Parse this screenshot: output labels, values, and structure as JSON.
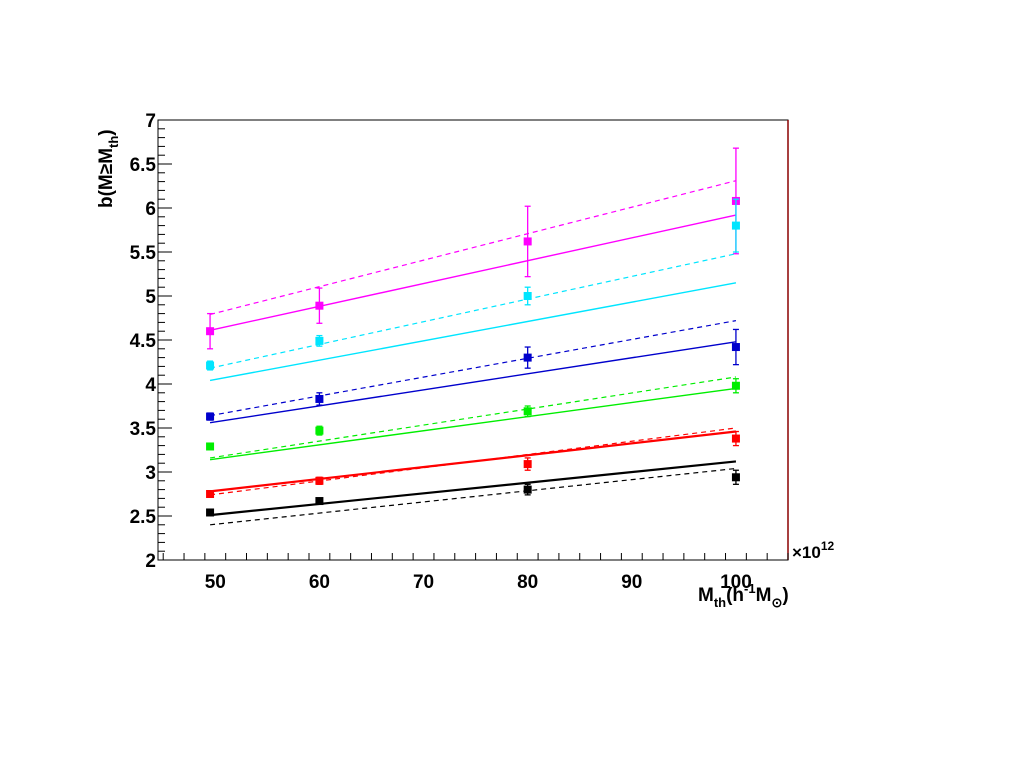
{
  "chart_data": {
    "type": "scatter",
    "title": "",
    "xlabel": {
      "main": "M",
      "sub": "th",
      "open": "(h",
      "sup": "-1",
      "m": "M",
      "odot": "⊙",
      "close": ")"
    },
    "ylabel": {
      "main": "b(M≥M",
      "sub": "th",
      "close": ")"
    },
    "x_multiplier": "×10",
    "x_multiplier_exp": "12",
    "xlim": [
      44.5,
      105
    ],
    "ylim": [
      2,
      7
    ],
    "x_ticks": [
      50,
      60,
      70,
      80,
      90,
      100
    ],
    "y_ticks": [
      2,
      2.5,
      3,
      3.5,
      4,
      4.5,
      5,
      5.5,
      6,
      6.5,
      7
    ],
    "x_tick_labels": [
      "50",
      "60",
      "70",
      "80",
      "90",
      "100"
    ],
    "y_tick_labels": [
      "2",
      "2.5",
      "3",
      "3.5",
      "4",
      "4.5",
      "5",
      "5.5",
      "6",
      "6.5",
      "7"
    ],
    "grid": false,
    "series": [
      {
        "color": "#ff00ff",
        "points": [
          {
            "x": 49.5,
            "y": 4.6,
            "err": 0.2
          },
          {
            "x": 60,
            "y": 4.89,
            "err": 0.2
          },
          {
            "x": 80,
            "y": 5.62,
            "err": 0.4
          },
          {
            "x": 100,
            "y": 6.08,
            "err": 0.6
          }
        ],
        "solid": [
          [
            49.5,
            4.61
          ],
          [
            100,
            5.92
          ]
        ],
        "dashed": [
          [
            49.5,
            4.79
          ],
          [
            100,
            6.31
          ]
        ]
      },
      {
        "color": "#00e5ff",
        "points": [
          {
            "x": 49.5,
            "y": 4.21,
            "err": 0.05
          },
          {
            "x": 60,
            "y": 4.49,
            "err": 0.06
          },
          {
            "x": 80,
            "y": 5.0,
            "err": 0.1
          },
          {
            "x": 100,
            "y": 5.8,
            "err": 0.3
          }
        ],
        "solid": [
          [
            49.5,
            4.04
          ],
          [
            100,
            5.15
          ]
        ],
        "dashed": [
          [
            49.5,
            4.18
          ],
          [
            100,
            5.48
          ]
        ]
      },
      {
        "color": "#0000cc",
        "points": [
          {
            "x": 49.5,
            "y": 3.63,
            "err": 0.04
          },
          {
            "x": 60,
            "y": 3.83,
            "err": 0.07
          },
          {
            "x": 80,
            "y": 4.3,
            "err": 0.12
          },
          {
            "x": 100,
            "y": 4.42,
            "err": 0.2
          }
        ],
        "solid": [
          [
            49.5,
            3.56
          ],
          [
            100,
            4.48
          ]
        ],
        "dashed": [
          [
            49.5,
            3.64
          ],
          [
            100,
            4.72
          ]
        ]
      },
      {
        "color": "#00ee00",
        "points": [
          {
            "x": 49.5,
            "y": 3.29,
            "err": 0.03
          },
          {
            "x": 60,
            "y": 3.47,
            "err": 0.05
          },
          {
            "x": 80,
            "y": 3.69,
            "err": 0.06
          },
          {
            "x": 100,
            "y": 3.98,
            "err": 0.08
          }
        ],
        "solid": [
          [
            49.5,
            3.14
          ],
          [
            100,
            3.95
          ]
        ],
        "dashed": [
          [
            49.5,
            3.16
          ],
          [
            100,
            4.08
          ]
        ]
      },
      {
        "color": "#ff0000",
        "points": [
          {
            "x": 49.5,
            "y": 2.75,
            "err": 0.02
          },
          {
            "x": 60,
            "y": 2.9,
            "err": 0.04
          },
          {
            "x": 80,
            "y": 3.09,
            "err": 0.07
          },
          {
            "x": 100,
            "y": 3.38,
            "err": 0.08
          }
        ],
        "solid": [
          [
            49.5,
            2.78
          ],
          [
            100,
            3.46
          ]
        ],
        "dashed": [
          [
            49.5,
            2.74
          ],
          [
            100,
            3.5
          ]
        ]
      },
      {
        "color": "#000000",
        "points": [
          {
            "x": 49.5,
            "y": 2.54,
            "err": 0.02
          },
          {
            "x": 60,
            "y": 2.67,
            "err": 0.03
          },
          {
            "x": 80,
            "y": 2.8,
            "err": 0.06
          },
          {
            "x": 100,
            "y": 2.94,
            "err": 0.08
          }
        ],
        "solid": [
          [
            49.5,
            2.51
          ],
          [
            100,
            3.12
          ]
        ],
        "dashed": [
          [
            49.5,
            2.4
          ],
          [
            100,
            3.04
          ]
        ]
      }
    ]
  }
}
